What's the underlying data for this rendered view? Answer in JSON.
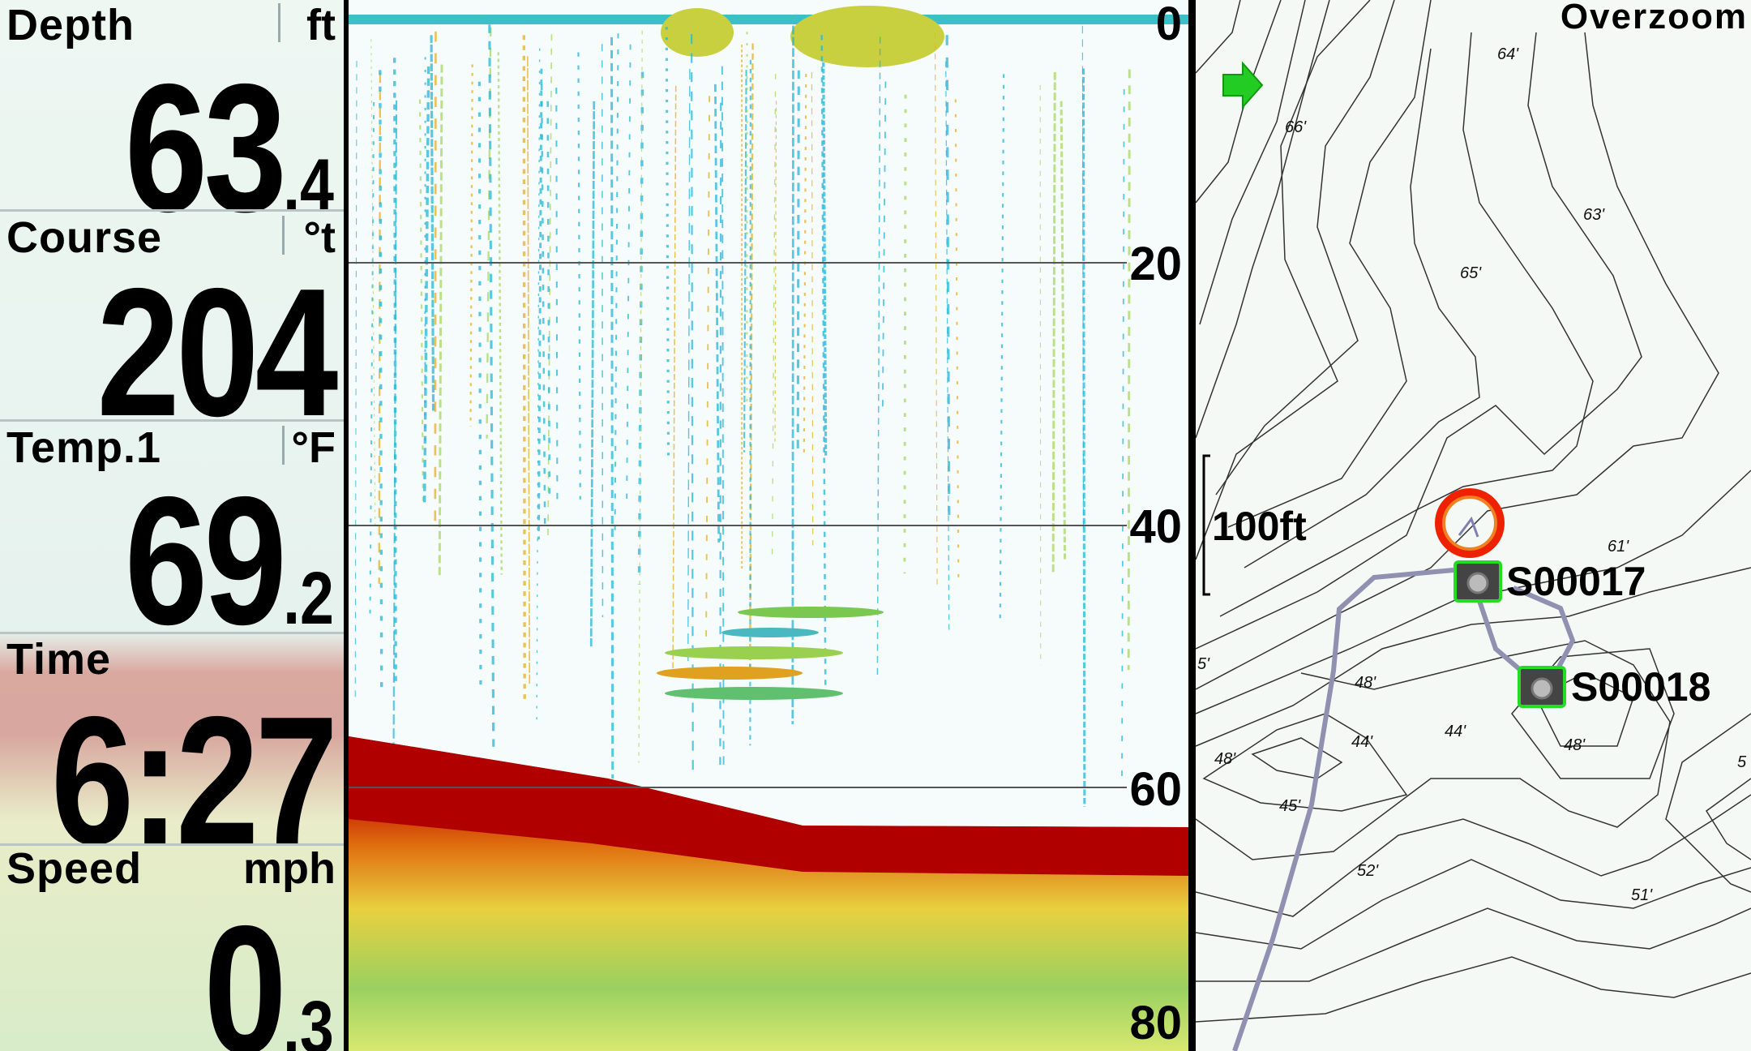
{
  "fields": [
    {
      "label": "Depth",
      "unit": "ft",
      "value": "63",
      "decimal": ".4"
    },
    {
      "label": "Course",
      "unit": "°t",
      "value": "204",
      "decimal": ""
    },
    {
      "label": "Temp.1",
      "unit": "°F",
      "value": "69",
      "decimal": ".2"
    },
    {
      "label": "Time",
      "unit": "",
      "value": "6:27",
      "decimal": ""
    },
    {
      "label": "Speed",
      "unit": "mph",
      "value": "0",
      "decimal": ".3"
    }
  ],
  "sonar": {
    "depth_scale": [
      "0",
      "20",
      "40",
      "60",
      "80"
    ],
    "colors": {
      "bottom": "#b00000",
      "water": "#f6fbfb",
      "weak": "#22b8d8",
      "mid": "#a8d860",
      "strong": "#e8b020"
    }
  },
  "map": {
    "mode_label": "Overzoom",
    "scale_label": "100ft",
    "contour_labels": [
      "64'",
      "66'",
      "63'",
      "65'",
      "61'",
      "5'",
      "48'",
      "44'",
      "44'",
      "48'",
      "48'",
      "45'",
      "52'",
      "51'",
      "5"
    ],
    "waypoints": [
      {
        "name": "S00017",
        "icon": "camera-icon"
      },
      {
        "name": "S00018",
        "icon": "camera-icon"
      }
    ],
    "boat_icon": "boat-position-circle",
    "heading_icon": "green-arrow-icon",
    "colors": {
      "track": "#9090b0",
      "contour": "#333333",
      "waypoint_border": "#22dd22",
      "boat": "#ee2200"
    }
  }
}
